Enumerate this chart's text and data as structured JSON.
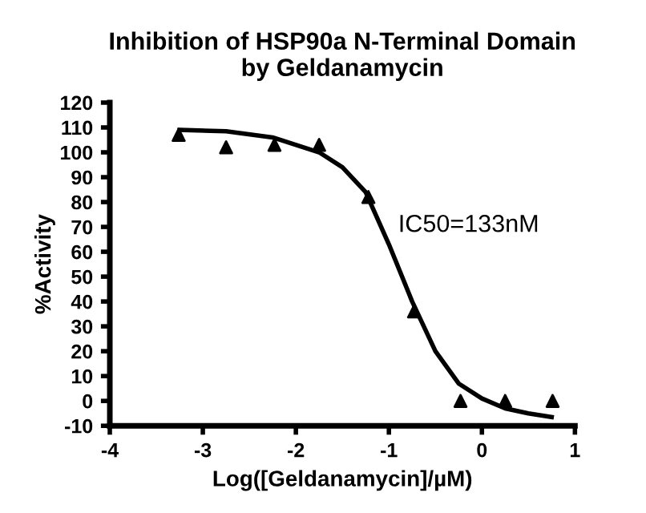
{
  "chart_data": {
    "type": "scatter",
    "title": "Inhibition of HSP90a N-Terminal Domain\nby Geldanamycin",
    "xlabel": "Log([Geldanamycin]/µM)",
    "ylabel": "%Activity",
    "annotations": [
      "IC50=133nM"
    ],
    "series": [
      {
        "color": "#000000",
        "marker": "triangle",
        "x": [
          -3.26,
          -2.75,
          -2.23,
          -1.75,
          -1.22,
          -0.73,
          -0.23,
          0.25,
          0.76
        ],
        "values": [
          107,
          102,
          103,
          103,
          82,
          36,
          0,
          0,
          0
        ]
      },
      {
        "type": "line",
        "color": "#000000",
        "marker": "none",
        "x": [
          -3.25,
          -2.75,
          -2.25,
          -1.75,
          -1.5,
          -1.25,
          -1,
          -0.75,
          -0.5,
          -0.25,
          0,
          0.25,
          0.5,
          0.75
        ],
        "values": [
          109,
          108.5,
          106,
          100,
          94,
          84,
          63,
          40,
          20,
          7,
          1,
          -3,
          -5,
          -6.5
        ]
      }
    ],
    "xlim": [
      -4,
      1
    ],
    "xticks": [
      -4,
      -3,
      -2,
      -1,
      0,
      1
    ],
    "ylim": [
      -10,
      120
    ],
    "yticks": [
      -10,
      0,
      10,
      20,
      30,
      40,
      50,
      60,
      70,
      80,
      90,
      100,
      110,
      120
    ],
    "grid": false,
    "legend": false
  }
}
